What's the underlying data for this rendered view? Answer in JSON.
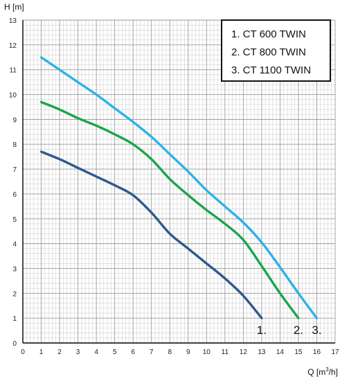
{
  "chart_data": {
    "type": "line",
    "title": "",
    "ylabel": "H [m]",
    "xlabel_prefix": "Q [m",
    "xlabel_sup": "3",
    "xlabel_suffix": "/h]",
    "xlim": [
      0,
      17
    ],
    "ylim": [
      0,
      13
    ],
    "x_ticks": [
      0,
      1,
      2,
      3,
      4,
      5,
      6,
      7,
      8,
      9,
      10,
      11,
      12,
      13,
      14,
      15,
      16,
      17
    ],
    "y_ticks": [
      0,
      1,
      2,
      3,
      4,
      5,
      6,
      7,
      8,
      9,
      10,
      11,
      12,
      13
    ],
    "grid": true,
    "minor_grid": true,
    "legend_position": "top-right",
    "legend": [
      "1. CT 600 TWIN",
      "2. CT 800 TWIN",
      "3. CT 1100 TWIN"
    ],
    "series": [
      {
        "name": "1. CT 600 TWIN",
        "end_label": "1.",
        "color": "#2b5a8c",
        "x": [
          1,
          2,
          3,
          4,
          5,
          6,
          7,
          8,
          9,
          10,
          11,
          12,
          13
        ],
        "y": [
          7.7,
          7.4,
          7.05,
          6.7,
          6.35,
          5.95,
          5.25,
          4.4,
          3.8,
          3.2,
          2.6,
          1.9,
          1.0
        ]
      },
      {
        "name": "2. CT 800 TWIN",
        "end_label": "2.",
        "color": "#1aa64a",
        "x": [
          1,
          2,
          3,
          4,
          5,
          6,
          7,
          8,
          9,
          10,
          11,
          12,
          13,
          14,
          15
        ],
        "y": [
          9.7,
          9.4,
          9.05,
          8.75,
          8.4,
          8.0,
          7.4,
          6.6,
          5.95,
          5.35,
          4.8,
          4.15,
          3.1,
          2.0,
          1.0
        ]
      },
      {
        "name": "3. CT 1100 TWIN",
        "end_label": "3.",
        "color": "#2bb2ea",
        "x": [
          1,
          2,
          3,
          4,
          5,
          6,
          7,
          8,
          9,
          10,
          11,
          12,
          13,
          14,
          15,
          16
        ],
        "y": [
          11.5,
          11.0,
          10.5,
          10.0,
          9.45,
          8.9,
          8.3,
          7.6,
          6.9,
          6.15,
          5.5,
          4.85,
          4.05,
          3.05,
          2.0,
          1.0
        ]
      }
    ]
  }
}
